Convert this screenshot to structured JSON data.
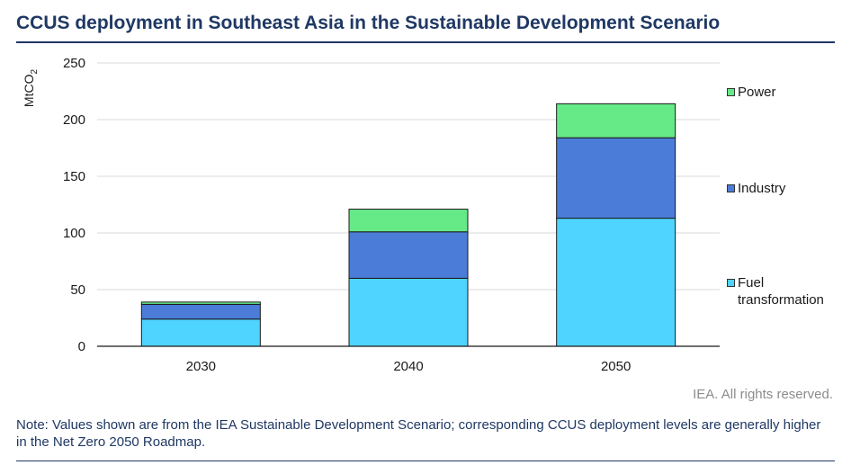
{
  "title": "CCUS deployment in Southeast Asia in the Sustainable Development Scenario",
  "credit": "IEA. All rights reserved.",
  "note": "Note: Values shown are from the IEA Sustainable Development Scenario; corresponding CCUS deployment levels are generally higher in the Net Zero 2050 Roadmap.",
  "chart_data": {
    "type": "bar",
    "stacked": true,
    "categories": [
      "2030",
      "2040",
      "2050"
    ],
    "ylabel": "MtCO2",
    "ylim": [
      0,
      250
    ],
    "yticks": [
      0,
      50,
      100,
      150,
      200,
      250
    ],
    "grid": true,
    "legend_position": "right",
    "series": [
      {
        "name": "Fuel transformation",
        "color": "#4fd4ff",
        "values": [
          24,
          60,
          113
        ]
      },
      {
        "name": "Industry",
        "color": "#4a7cd8",
        "values": [
          13,
          41,
          71
        ]
      },
      {
        "name": "Power",
        "color": "#66ea88",
        "values": [
          2,
          20,
          30
        ]
      }
    ]
  }
}
